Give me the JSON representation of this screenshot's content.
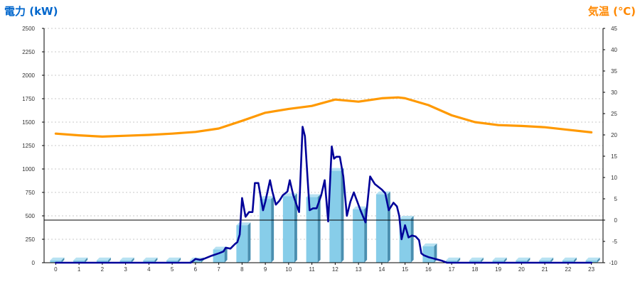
{
  "chart_data": {
    "type": "bar+line",
    "ylabel_left": "電力 (kW)",
    "ylabel_right": "気温 (℃)",
    "x_categories": [
      "0",
      "1",
      "2",
      "3",
      "4",
      "5",
      "6",
      "7",
      "8",
      "9",
      "10",
      "11",
      "12",
      "13",
      "14",
      "15",
      "16",
      "17",
      "18",
      "19",
      "20",
      "21",
      "22",
      "23"
    ],
    "y_left_ticks": [
      "0",
      "250",
      "500",
      "750",
      "1000",
      "1250",
      "1500",
      "1750",
      "2000",
      "2250",
      "2500"
    ],
    "y_left_range": [
      0,
      2500
    ],
    "y_right_ticks": [
      "-10",
      "-5",
      "0",
      "5",
      "10",
      "15",
      "20",
      "25",
      "30",
      "35",
      "40",
      "45"
    ],
    "y_right_range": [
      -10,
      45
    ],
    "grid": true,
    "hourly_power_bars": [
      {
        "hour": 0,
        "kw": 25
      },
      {
        "hour": 1,
        "kw": 25
      },
      {
        "hour": 2,
        "kw": 25
      },
      {
        "hour": 3,
        "kw": 25
      },
      {
        "hour": 4,
        "kw": 25
      },
      {
        "hour": 5,
        "kw": 25
      },
      {
        "hour": 6,
        "kw": 25
      },
      {
        "hour": 7,
        "kw": 140
      },
      {
        "hour": 8,
        "kw": 400
      },
      {
        "hour": 9,
        "kw": 680
      },
      {
        "hour": 10,
        "kw": 710
      },
      {
        "hour": 11,
        "kw": 700
      },
      {
        "hour": 12,
        "kw": 980
      },
      {
        "hour": 13,
        "kw": 570
      },
      {
        "hour": 14,
        "kw": 730
      },
      {
        "hour": 15,
        "kw": 470
      },
      {
        "hour": 16,
        "kw": 175
      },
      {
        "hour": 17,
        "kw": 25
      },
      {
        "hour": 18,
        "kw": 25
      },
      {
        "hour": 19,
        "kw": 25
      },
      {
        "hour": 20,
        "kw": 25
      },
      {
        "hour": 21,
        "kw": 25
      },
      {
        "hour": 22,
        "kw": 25
      },
      {
        "hour": 23,
        "kw": 25
      }
    ],
    "power_line": {
      "color": "#000099",
      "points": [
        [
          0,
          0
        ],
        [
          1,
          0
        ],
        [
          2,
          0
        ],
        [
          3,
          0
        ],
        [
          4,
          0
        ],
        [
          5,
          0
        ],
        [
          5.8,
          0
        ],
        [
          6,
          40
        ],
        [
          6.2,
          30
        ],
        [
          6.4,
          45
        ],
        [
          6.7,
          75
        ],
        [
          7,
          100
        ],
        [
          7.2,
          120
        ],
        [
          7.3,
          160
        ],
        [
          7.5,
          150
        ],
        [
          7.7,
          200
        ],
        [
          7.8,
          220
        ],
        [
          7.9,
          300
        ],
        [
          8,
          690
        ],
        [
          8.15,
          490
        ],
        [
          8.3,
          540
        ],
        [
          8.45,
          540
        ],
        [
          8.55,
          850
        ],
        [
          8.7,
          850
        ],
        [
          8.9,
          560
        ],
        [
          9,
          650
        ],
        [
          9.2,
          880
        ],
        [
          9.3,
          760
        ],
        [
          9.45,
          620
        ],
        [
          9.6,
          660
        ],
        [
          9.75,
          720
        ],
        [
          9.95,
          760
        ],
        [
          10.05,
          880
        ],
        [
          10.2,
          720
        ],
        [
          10.45,
          540
        ],
        [
          10.6,
          1450
        ],
        [
          10.7,
          1350
        ],
        [
          10.8,
          950
        ],
        [
          10.9,
          560
        ],
        [
          11.05,
          580
        ],
        [
          11.2,
          580
        ],
        [
          11.3,
          650
        ],
        [
          11.4,
          720
        ],
        [
          11.55,
          880
        ],
        [
          11.7,
          440
        ],
        [
          11.85,
          1240
        ],
        [
          11.95,
          1110
        ],
        [
          12.05,
          1130
        ],
        [
          12.2,
          1130
        ],
        [
          12.35,
          920
        ],
        [
          12.5,
          500
        ],
        [
          12.65,
          650
        ],
        [
          12.8,
          750
        ],
        [
          12.95,
          650
        ],
        [
          13.1,
          550
        ],
        [
          13.3,
          430
        ],
        [
          13.5,
          920
        ],
        [
          13.7,
          840
        ],
        [
          13.85,
          810
        ],
        [
          14,
          780
        ],
        [
          14.15,
          740
        ],
        [
          14.3,
          560
        ],
        [
          14.5,
          640
        ],
        [
          14.65,
          600
        ],
        [
          14.75,
          500
        ],
        [
          14.85,
          250
        ],
        [
          15,
          400
        ],
        [
          15.15,
          270
        ],
        [
          15.3,
          290
        ],
        [
          15.45,
          280
        ],
        [
          15.6,
          240
        ],
        [
          15.7,
          100
        ],
        [
          15.8,
          80
        ],
        [
          16,
          60
        ],
        [
          16.3,
          40
        ],
        [
          16.6,
          20
        ],
        [
          16.8,
          0
        ],
        [
          17,
          0
        ],
        [
          18,
          0
        ],
        [
          19,
          0
        ],
        [
          20,
          0
        ],
        [
          21,
          0
        ],
        [
          22,
          0
        ],
        [
          23,
          0
        ]
      ]
    },
    "temperature_line": {
      "color": "#ff9900",
      "points": [
        [
          0,
          20.3
        ],
        [
          1,
          19.9
        ],
        [
          2,
          19.6
        ],
        [
          3,
          19.8
        ],
        [
          4,
          20.0
        ],
        [
          5,
          20.3
        ],
        [
          6,
          20.7
        ],
        [
          7,
          21.5
        ],
        [
          8,
          23.3
        ],
        [
          9,
          25.2
        ],
        [
          10,
          26.1
        ],
        [
          11,
          26.8
        ],
        [
          12,
          28.3
        ],
        [
          13,
          27.8
        ],
        [
          14,
          28.6
        ],
        [
          14.7,
          28.8
        ],
        [
          15,
          28.6
        ],
        [
          16,
          27.0
        ],
        [
          17,
          24.6
        ],
        [
          18,
          23.0
        ],
        [
          19,
          22.3
        ],
        [
          20,
          22.1
        ],
        [
          21,
          21.8
        ],
        [
          22,
          21.2
        ],
        [
          23,
          20.6
        ]
      ]
    }
  }
}
